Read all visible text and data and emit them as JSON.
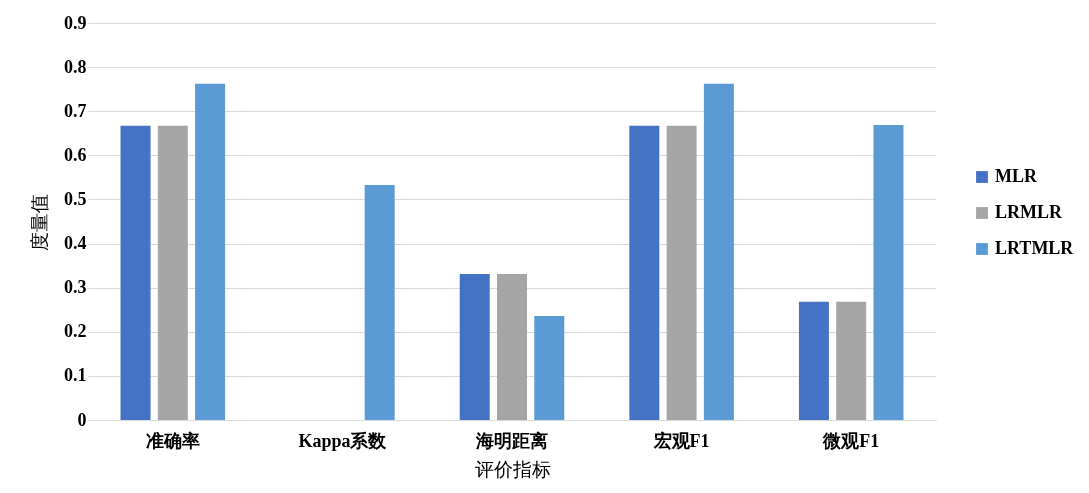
{
  "chart_data": {
    "type": "bar",
    "xlabel": "评价指标",
    "ylabel": "度量值",
    "categories": [
      "准确率",
      "Kappa系数",
      "海明距离",
      "宏观F1",
      "微观F1"
    ],
    "series": [
      {
        "name": "MLR",
        "color": "#4472c4",
        "values": [
          0.667,
          0,
          0.331,
          0.667,
          0.268
        ]
      },
      {
        "name": "LRMLR",
        "color": "#a5a5a5",
        "values": [
          0.667,
          0,
          0.331,
          0.667,
          0.268
        ]
      },
      {
        "name": "LRTMLR",
        "color": "#5b9bd5",
        "values": [
          0.762,
          0.533,
          0.236,
          0.762,
          0.669
        ]
      }
    ],
    "ylim": [
      0,
      0.9
    ],
    "yticks": [
      0,
      0.1,
      0.2,
      0.3,
      0.4,
      0.5,
      0.6,
      0.7,
      0.8,
      0.9
    ],
    "grid": "y",
    "legend": "right"
  }
}
